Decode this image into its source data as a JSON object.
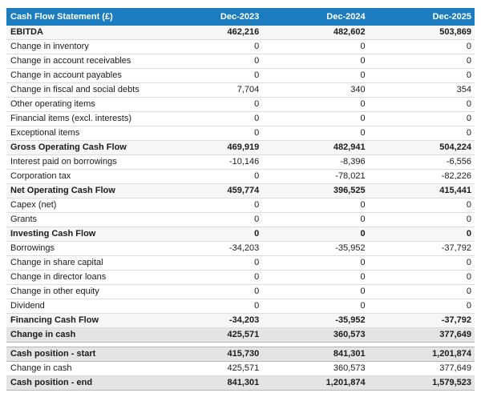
{
  "colors": {
    "header_bg": "#1b7dc0",
    "header_text": "#ffffff",
    "subtotal_bg": "#f6f6f6",
    "summary_bg": "#e4e4e4"
  },
  "table": {
    "title": "Cash Flow Statement (£)",
    "columns": [
      "Dec-2023",
      "Dec-2024",
      "Dec-2025"
    ],
    "rows": [
      {
        "label": "EBITDA",
        "style": "subtotal",
        "values": [
          "462,216",
          "482,602",
          "503,869"
        ]
      },
      {
        "label": "Change in inventory",
        "style": "normal",
        "values": [
          "0",
          "0",
          "0"
        ]
      },
      {
        "label": "Change in account receivables",
        "style": "normal",
        "values": [
          "0",
          "0",
          "0"
        ]
      },
      {
        "label": "Change in account payables",
        "style": "normal",
        "values": [
          "0",
          "0",
          "0"
        ]
      },
      {
        "label": "Change in fiscal and social debts",
        "style": "normal",
        "values": [
          "7,704",
          "340",
          "354"
        ]
      },
      {
        "label": "Other operating items",
        "style": "normal",
        "values": [
          "0",
          "0",
          "0"
        ]
      },
      {
        "label": "Financial items (excl. interests)",
        "style": "normal",
        "values": [
          "0",
          "0",
          "0"
        ]
      },
      {
        "label": "Exceptional items",
        "style": "normal",
        "values": [
          "0",
          "0",
          "0"
        ]
      },
      {
        "label": "Gross Operating Cash Flow",
        "style": "subtotal",
        "values": [
          "469,919",
          "482,941",
          "504,224"
        ]
      },
      {
        "label": "Interest paid on borrowings",
        "style": "normal",
        "values": [
          "-10,146",
          "-8,396",
          "-6,556"
        ]
      },
      {
        "label": "Corporation tax",
        "style": "normal",
        "values": [
          "0",
          "-78,021",
          "-82,226"
        ]
      },
      {
        "label": "Net Operating Cash Flow",
        "style": "subtotal",
        "values": [
          "459,774",
          "396,525",
          "415,441"
        ]
      },
      {
        "label": "Capex (net)",
        "style": "normal",
        "values": [
          "0",
          "0",
          "0"
        ]
      },
      {
        "label": "Grants",
        "style": "normal",
        "values": [
          "0",
          "0",
          "0"
        ]
      },
      {
        "label": "Investing Cash Flow",
        "style": "subtotal",
        "values": [
          "0",
          "0",
          "0"
        ]
      },
      {
        "label": "Borrowings",
        "style": "normal",
        "values": [
          "-34,203",
          "-35,952",
          "-37,792"
        ]
      },
      {
        "label": "Change in share capital",
        "style": "normal",
        "values": [
          "0",
          "0",
          "0"
        ]
      },
      {
        "label": "Change in director loans",
        "style": "normal",
        "values": [
          "0",
          "0",
          "0"
        ]
      },
      {
        "label": "Change in other equity",
        "style": "normal",
        "values": [
          "0",
          "0",
          "0"
        ]
      },
      {
        "label": "Dividend",
        "style": "normal",
        "values": [
          "0",
          "0",
          "0"
        ]
      },
      {
        "label": "Financing Cash Flow",
        "style": "subtotal",
        "values": [
          "-34,203",
          "-35,952",
          "-37,792"
        ]
      },
      {
        "label": "Change in cash",
        "style": "summary",
        "values": [
          "425,571",
          "360,573",
          "377,649"
        ]
      },
      {
        "label": "Cash position - start",
        "style": "summary",
        "spacer_before": true,
        "values": [
          "415,730",
          "841,301",
          "1,201,874"
        ]
      },
      {
        "label": "Change in cash",
        "style": "normal",
        "values": [
          "425,571",
          "360,573",
          "377,649"
        ]
      },
      {
        "label": "Cash position - end",
        "style": "summary",
        "values": [
          "841,301",
          "1,201,874",
          "1,579,523"
        ]
      }
    ]
  }
}
